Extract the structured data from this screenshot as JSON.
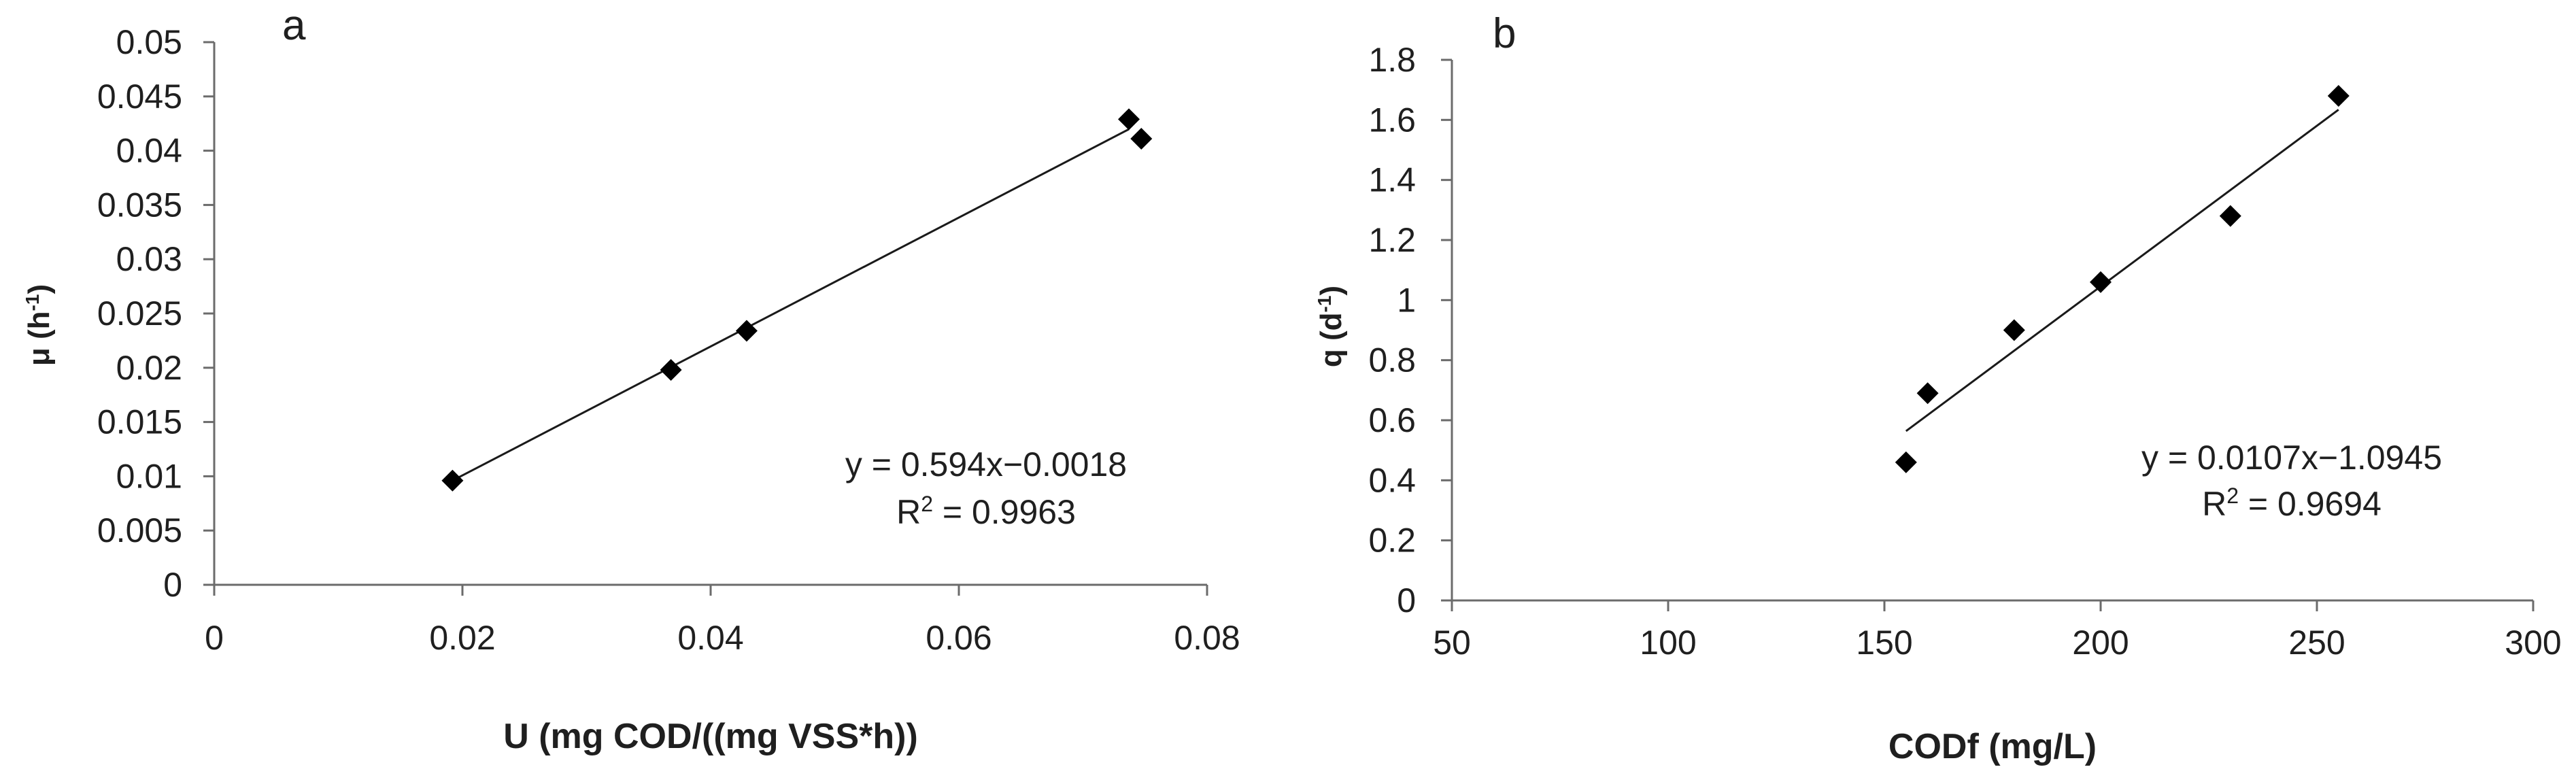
{
  "chart_data": [
    {
      "type": "scatter",
      "panel_label": "a",
      "xlabel": "U (mg COD/((mg VSS*h))",
      "ylabel": {
        "main": "μ (h",
        "sup": "-1",
        "tail": ")"
      },
      "xlim": [
        0,
        0.08
      ],
      "ylim": [
        0,
        0.05
      ],
      "x_ticks": [
        "0",
        "0.02",
        "0.04",
        "0.06",
        "0.08"
      ],
      "y_ticks": [
        "0",
        "0.005",
        "0.01",
        "0.015",
        "0.02",
        "0.025",
        "0.03",
        "0.035",
        "0.04",
        "0.045",
        "0.05"
      ],
      "grid": false,
      "points": [
        {
          "x": 0.0192,
          "y": 0.0096
        },
        {
          "x": 0.0368,
          "y": 0.0198
        },
        {
          "x": 0.0429,
          "y": 0.0234
        },
        {
          "x": 0.0737,
          "y": 0.0429
        },
        {
          "x": 0.0747,
          "y": 0.0411
        }
      ],
      "trendline": {
        "slope": 0.594,
        "intercept": -0.0018,
        "x_range": [
          0.0192,
          0.0737
        ]
      },
      "equation_text": "y = 0.594x−0.0018",
      "r2_text": {
        "main": "R",
        "sup": "2",
        "tail": " = 0.9963"
      },
      "marker": "diamond",
      "marker_color": "#000000",
      "line_color": "#1a1a1a"
    },
    {
      "type": "scatter",
      "panel_label": "b",
      "xlabel": "CODf (mg/L)",
      "ylabel": {
        "main": "q (d",
        "sup": "-1",
        "tail": ")"
      },
      "xlim": [
        50,
        300
      ],
      "ylim": [
        0,
        1.8
      ],
      "x_ticks": [
        "50",
        "100",
        "150",
        "200",
        "250",
        "300"
      ],
      "y_ticks": [
        "0",
        "0.2",
        "0.4",
        "0.6",
        "0.8",
        "1",
        "1.2",
        "1.4",
        "1.6",
        "1.8"
      ],
      "grid": false,
      "points": [
        {
          "x": 155,
          "y": 0.46
        },
        {
          "x": 160,
          "y": 0.69
        },
        {
          "x": 180,
          "y": 0.9
        },
        {
          "x": 200,
          "y": 1.06
        },
        {
          "x": 230,
          "y": 1.28
        },
        {
          "x": 255,
          "y": 1.68
        }
      ],
      "trendline": {
        "slope": 0.0107,
        "intercept": -1.0945,
        "x_range": [
          155,
          255
        ]
      },
      "equation_text": "y = 0.0107x−1.0945",
      "r2_text": {
        "main": "R",
        "sup": "2",
        "tail": " = 0.9694"
      },
      "marker": "diamond",
      "marker_color": "#000000",
      "line_color": "#1a1a1a"
    }
  ]
}
